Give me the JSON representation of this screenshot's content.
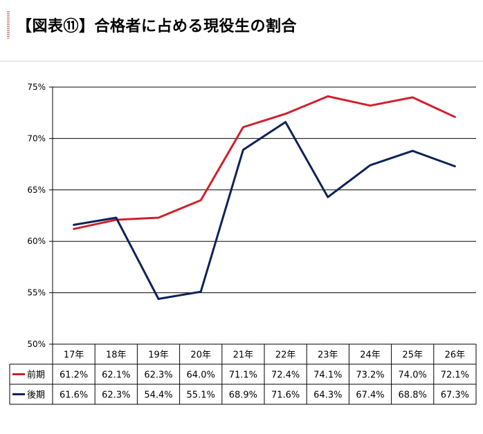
{
  "header": {
    "title": "【図表⑪】合格者に占める現役生の割合"
  },
  "chart_data": {
    "type": "line",
    "title": "",
    "xlabel": "",
    "ylabel": "",
    "categories": [
      "17年",
      "18年",
      "19年",
      "20年",
      "21年",
      "22年",
      "23年",
      "24年",
      "25年",
      "26年"
    ],
    "ylim": [
      50,
      75
    ],
    "yticks": [
      50,
      55,
      60,
      65,
      70,
      75
    ],
    "ytick_labels": [
      "50%",
      "55%",
      "60%",
      "65%",
      "70%",
      "75%"
    ],
    "grid": true,
    "legend": "data-table-left",
    "series": [
      {
        "name": "前期",
        "color": "#d0202a",
        "values": [
          61.2,
          62.1,
          62.3,
          64.0,
          71.1,
          72.4,
          74.1,
          73.2,
          74.0,
          72.1
        ],
        "labels": [
          "61.2%",
          "62.1%",
          "62.3%",
          "64.0%",
          "71.1%",
          "72.4%",
          "74.1%",
          "73.2%",
          "74.0%",
          "72.1%"
        ]
      },
      {
        "name": "後期",
        "color": "#0e2258",
        "values": [
          61.6,
          62.3,
          54.4,
          55.1,
          68.9,
          71.6,
          64.3,
          67.4,
          68.8,
          67.3
        ],
        "labels": [
          "61.6%",
          "62.3%",
          "54.4%",
          "55.1%",
          "68.9%",
          "71.6%",
          "64.3%",
          "67.4%",
          "68.8%",
          "67.3%"
        ]
      }
    ]
  }
}
